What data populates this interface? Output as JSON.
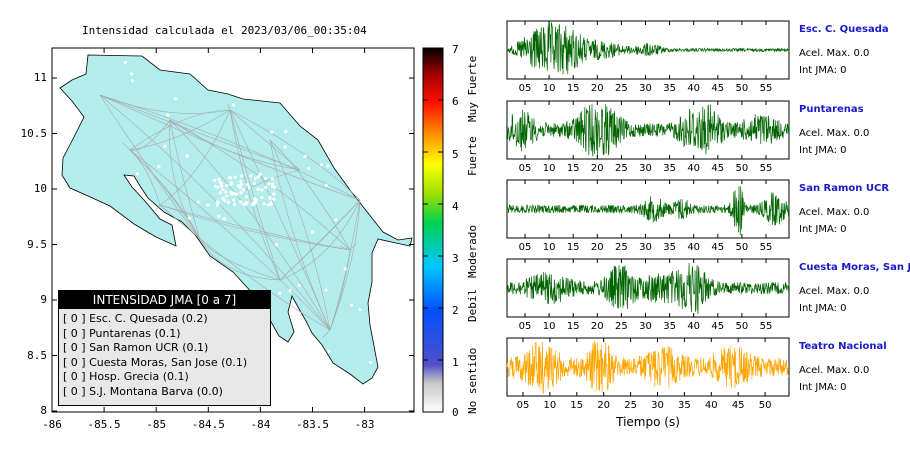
{
  "map": {
    "title": "Intensidad calculada el 2023/03/06_00:35:04",
    "lon_ticks": [
      "-86",
      "-85.5",
      "-85",
      "-84.5",
      "-84",
      "-83.5",
      "-83"
    ],
    "lat_ticks": [
      "11",
      "10.5",
      "10",
      "9.5",
      "9",
      "8.5",
      "8"
    ],
    "land_color": "#b3ecec"
  },
  "legend": {
    "header": "INTENSIDAD JMA [0 a 7]",
    "rows": [
      "[ 0 ]  Esc. C. Quesada (0.2)",
      "[ 0 ]  Puntarenas (0.1)",
      "[ 0 ]  San Ramon UCR (0.1)",
      "[ 0 ]  Cuesta Moras, San Jose (0.1)",
      "[ 0 ]  Hosp. Grecia (0.1)",
      "[ 0 ]  S.J. Montana Barva (0.0)"
    ]
  },
  "colorbar": {
    "ticks": [
      "7",
      "6",
      "5",
      "4",
      "3",
      "2",
      "1",
      "0"
    ],
    "categories": [
      "Muy Fuerte",
      "Fuerte",
      "Moderado",
      "Debil",
      "No sentido"
    ]
  },
  "waveforms": {
    "xlabel": "Tiempo (s)",
    "panels": [
      {
        "name": "Esc. C. Quesada",
        "accel": "Acel. Max. 0.0",
        "int": "Int JMA: 0",
        "color": "#006400",
        "ticks": [
          "05",
          "10",
          "15",
          "20",
          "25",
          "30",
          "35",
          "40",
          "45",
          "50",
          "55"
        ]
      },
      {
        "name": "Puntarenas",
        "accel": "Acel. Max. 0.0",
        "int": "Int JMA: 0",
        "color": "#006400",
        "ticks": [
          "05",
          "10",
          "15",
          "20",
          "25",
          "30",
          "35",
          "40",
          "45",
          "50",
          "55"
        ]
      },
      {
        "name": "San Ramon UCR",
        "accel": "Acel. Max. 0.0",
        "int": "Int JMA: 0",
        "color": "#006400",
        "ticks": [
          "05",
          "10",
          "15",
          "20",
          "25",
          "30",
          "35",
          "40",
          "45",
          "50",
          "55"
        ]
      },
      {
        "name": "Cuesta Moras, San Jose",
        "accel": "Acel. Max. 0.0",
        "int": "Int JMA: 0",
        "color": "#006400",
        "ticks": [
          "05",
          "10",
          "15",
          "20",
          "25",
          "30",
          "35",
          "40",
          "45",
          "50",
          "55"
        ]
      },
      {
        "name": "Teatro Nacional",
        "accel": "Acel. Max. 0.0",
        "int": "Int JMA: 0",
        "color": "#ffa500",
        "ticks": [
          "05",
          "10",
          "15",
          "20",
          "25",
          "30",
          "35",
          "40",
          "45",
          "50"
        ]
      }
    ]
  }
}
